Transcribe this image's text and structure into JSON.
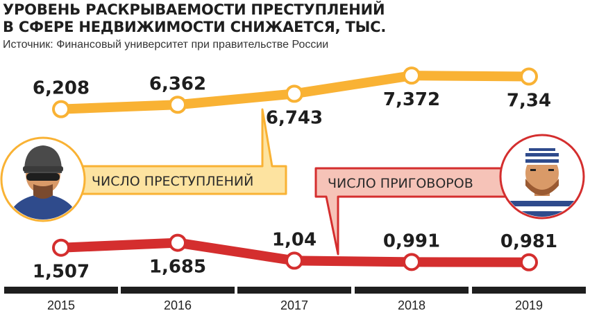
{
  "header": {
    "title_line1": "УРОВЕНЬ РАСКРЫВАЕМОСТИ ПРЕСТУПЛЕНИЙ",
    "title_line2": "В СФЕРЕ НЕДВИЖИМОСТИ СНИЖАЕТСЯ, ТЫС.",
    "source": "Источник: Финансовый университет при правительстве России"
  },
  "chart_data": {
    "type": "line",
    "categories": [
      "2015",
      "2016",
      "2017",
      "2018",
      "2019"
    ],
    "series": [
      {
        "name": "ЧИСЛО ПРЕСТУПЛЕНИЙ",
        "values": [
          6.208,
          6.362,
          6.743,
          7.372,
          7.34
        ],
        "labels": [
          "6,208",
          "6,362",
          "6,743",
          "7,372",
          "7,34"
        ],
        "color": "#f9b234",
        "callout_color": "#fde3a0"
      },
      {
        "name": "ЧИСЛО ПРИГОВОРОВ",
        "values": [
          1.507,
          1.685,
          1.04,
          0.991,
          0.981
        ],
        "labels": [
          "1,507",
          "1,685",
          "1,04",
          "0,991",
          "0,981"
        ],
        "color": "#d42e2e",
        "callout_color": "#f6c3b8"
      }
    ],
    "legend": "callouts",
    "grid": false
  },
  "icons": {
    "criminal": "masked-burglar-icon",
    "prisoner": "striped-prisoner-icon"
  }
}
